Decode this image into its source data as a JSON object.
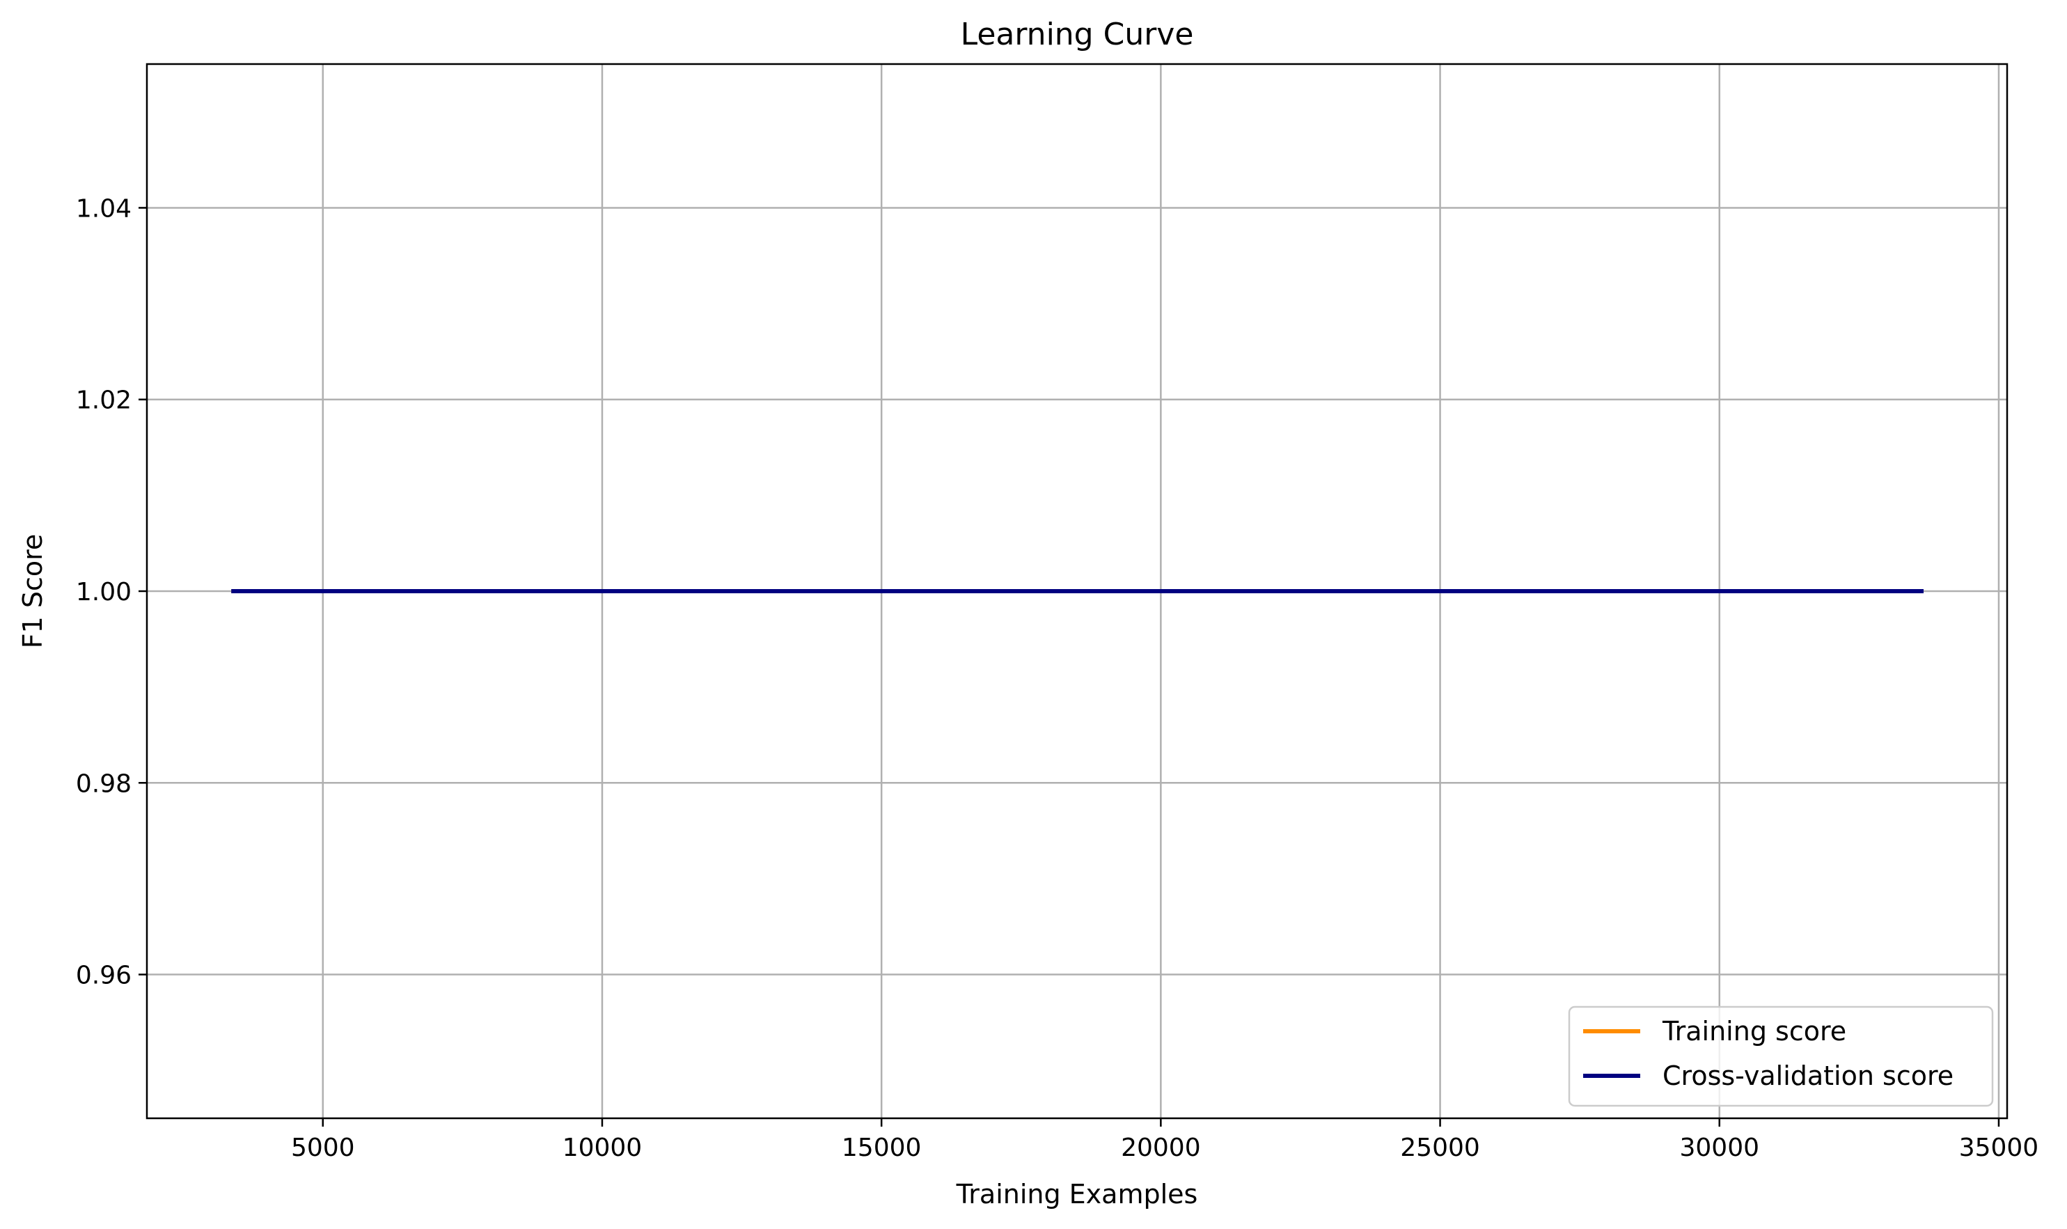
{
  "chart_data": {
    "type": "line",
    "title": "Learning Curve",
    "xlabel": "Training Examples",
    "ylabel": "F1 Score",
    "xlim": [
      1850,
      35150
    ],
    "ylim": [
      0.945,
      1.055
    ],
    "xticks": [
      5000,
      10000,
      15000,
      20000,
      25000,
      30000,
      35000
    ],
    "xtick_labels": [
      "5000",
      "10000",
      "15000",
      "20000",
      "25000",
      "30000",
      "35000"
    ],
    "yticks": [
      0.96,
      0.98,
      1.0,
      1.02,
      1.04
    ],
    "ytick_labels": [
      "0.96",
      "0.98",
      "1.00",
      "1.02",
      "1.04"
    ],
    "grid": true,
    "legend_position": "lower-right",
    "x": [
      3360,
      6726,
      10092,
      13458,
      16824,
      20190,
      23556,
      26922,
      30288,
      33654
    ],
    "series": [
      {
        "name": "Training score",
        "color": "#ff8c00",
        "values": [
          1.0,
          1.0,
          1.0,
          1.0,
          1.0,
          1.0,
          1.0,
          1.0,
          1.0,
          1.0
        ]
      },
      {
        "name": "Cross-validation score",
        "color": "#000080",
        "values": [
          1.0,
          1.0,
          1.0,
          1.0,
          1.0,
          1.0,
          1.0,
          1.0,
          1.0,
          1.0
        ]
      }
    ]
  }
}
